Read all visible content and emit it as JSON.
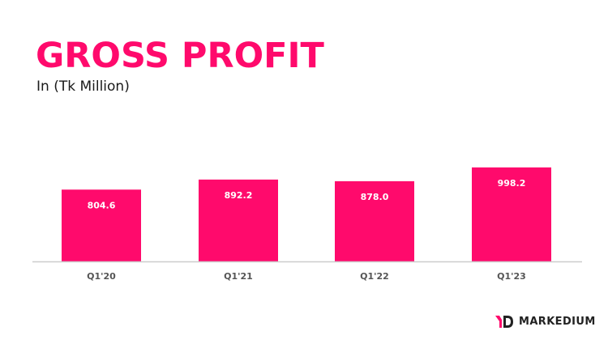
{
  "title": "GROSS PROFIT",
  "subtitle": "In (Tk Million)",
  "colors": {
    "accent": "#ff0a6c",
    "axis": "#cccccc",
    "bar_label": "#ffffff",
    "tick_label": "#555555"
  },
  "chart_data": {
    "type": "bar",
    "categories": [
      "Q1'20",
      "Q1'21",
      "Q1'22",
      "Q1'23"
    ],
    "values": [
      804.6,
      892.2,
      878.0,
      998.2
    ],
    "value_labels": [
      "804.6",
      "892.2",
      "878.0",
      "998.2"
    ],
    "title": "GROSS PROFIT",
    "subtitle": "In (Tk Million)",
    "xlabel": "",
    "ylabel": "",
    "grid": false,
    "legend": "none",
    "y_axis_visible": false
  },
  "brand": {
    "name": "MARKEDIUM",
    "icon": "md-logo-icon"
  }
}
